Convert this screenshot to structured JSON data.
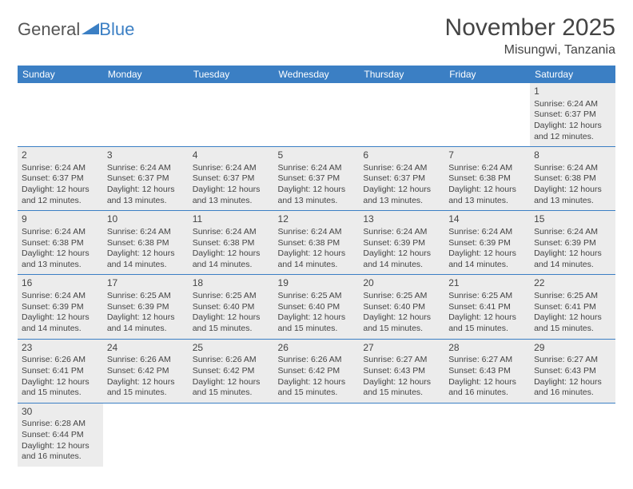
{
  "logo": {
    "part1": "General",
    "part2": "Blue"
  },
  "title": "November 2025",
  "location": "Misungwi, Tanzania",
  "colors": {
    "header_bg": "#3b7fc4",
    "header_fg": "#ffffff",
    "shaded_bg": "#ececec",
    "border": "#3b7fc4",
    "text": "#444444"
  },
  "dayHeaders": [
    "Sunday",
    "Monday",
    "Tuesday",
    "Wednesday",
    "Thursday",
    "Friday",
    "Saturday"
  ],
  "labels": {
    "sunrise": "Sunrise:",
    "sunset": "Sunset:",
    "daylight": "Daylight:"
  },
  "weeks": [
    [
      null,
      null,
      null,
      null,
      null,
      null,
      {
        "day": 1,
        "sunrise": "6:24 AM",
        "sunset": "6:37 PM",
        "daylight": "12 hours and 12 minutes."
      }
    ],
    [
      {
        "day": 2,
        "sunrise": "6:24 AM",
        "sunset": "6:37 PM",
        "daylight": "12 hours and 12 minutes."
      },
      {
        "day": 3,
        "sunrise": "6:24 AM",
        "sunset": "6:37 PM",
        "daylight": "12 hours and 13 minutes."
      },
      {
        "day": 4,
        "sunrise": "6:24 AM",
        "sunset": "6:37 PM",
        "daylight": "12 hours and 13 minutes."
      },
      {
        "day": 5,
        "sunrise": "6:24 AM",
        "sunset": "6:37 PM",
        "daylight": "12 hours and 13 minutes."
      },
      {
        "day": 6,
        "sunrise": "6:24 AM",
        "sunset": "6:37 PM",
        "daylight": "12 hours and 13 minutes."
      },
      {
        "day": 7,
        "sunrise": "6:24 AM",
        "sunset": "6:38 PM",
        "daylight": "12 hours and 13 minutes."
      },
      {
        "day": 8,
        "sunrise": "6:24 AM",
        "sunset": "6:38 PM",
        "daylight": "12 hours and 13 minutes."
      }
    ],
    [
      {
        "day": 9,
        "sunrise": "6:24 AM",
        "sunset": "6:38 PM",
        "daylight": "12 hours and 13 minutes."
      },
      {
        "day": 10,
        "sunrise": "6:24 AM",
        "sunset": "6:38 PM",
        "daylight": "12 hours and 14 minutes."
      },
      {
        "day": 11,
        "sunrise": "6:24 AM",
        "sunset": "6:38 PM",
        "daylight": "12 hours and 14 minutes."
      },
      {
        "day": 12,
        "sunrise": "6:24 AM",
        "sunset": "6:38 PM",
        "daylight": "12 hours and 14 minutes."
      },
      {
        "day": 13,
        "sunrise": "6:24 AM",
        "sunset": "6:39 PM",
        "daylight": "12 hours and 14 minutes."
      },
      {
        "day": 14,
        "sunrise": "6:24 AM",
        "sunset": "6:39 PM",
        "daylight": "12 hours and 14 minutes."
      },
      {
        "day": 15,
        "sunrise": "6:24 AM",
        "sunset": "6:39 PM",
        "daylight": "12 hours and 14 minutes."
      }
    ],
    [
      {
        "day": 16,
        "sunrise": "6:24 AM",
        "sunset": "6:39 PM",
        "daylight": "12 hours and 14 minutes."
      },
      {
        "day": 17,
        "sunrise": "6:25 AM",
        "sunset": "6:39 PM",
        "daylight": "12 hours and 14 minutes."
      },
      {
        "day": 18,
        "sunrise": "6:25 AM",
        "sunset": "6:40 PM",
        "daylight": "12 hours and 15 minutes."
      },
      {
        "day": 19,
        "sunrise": "6:25 AM",
        "sunset": "6:40 PM",
        "daylight": "12 hours and 15 minutes."
      },
      {
        "day": 20,
        "sunrise": "6:25 AM",
        "sunset": "6:40 PM",
        "daylight": "12 hours and 15 minutes."
      },
      {
        "day": 21,
        "sunrise": "6:25 AM",
        "sunset": "6:41 PM",
        "daylight": "12 hours and 15 minutes."
      },
      {
        "day": 22,
        "sunrise": "6:25 AM",
        "sunset": "6:41 PM",
        "daylight": "12 hours and 15 minutes."
      }
    ],
    [
      {
        "day": 23,
        "sunrise": "6:26 AM",
        "sunset": "6:41 PM",
        "daylight": "12 hours and 15 minutes."
      },
      {
        "day": 24,
        "sunrise": "6:26 AM",
        "sunset": "6:42 PM",
        "daylight": "12 hours and 15 minutes."
      },
      {
        "day": 25,
        "sunrise": "6:26 AM",
        "sunset": "6:42 PM",
        "daylight": "12 hours and 15 minutes."
      },
      {
        "day": 26,
        "sunrise": "6:26 AM",
        "sunset": "6:42 PM",
        "daylight": "12 hours and 15 minutes."
      },
      {
        "day": 27,
        "sunrise": "6:27 AM",
        "sunset": "6:43 PM",
        "daylight": "12 hours and 15 minutes."
      },
      {
        "day": 28,
        "sunrise": "6:27 AM",
        "sunset": "6:43 PM",
        "daylight": "12 hours and 16 minutes."
      },
      {
        "day": 29,
        "sunrise": "6:27 AM",
        "sunset": "6:43 PM",
        "daylight": "12 hours and 16 minutes."
      }
    ],
    [
      {
        "day": 30,
        "sunrise": "6:28 AM",
        "sunset": "6:44 PM",
        "daylight": "12 hours and 16 minutes."
      },
      null,
      null,
      null,
      null,
      null,
      null
    ]
  ]
}
